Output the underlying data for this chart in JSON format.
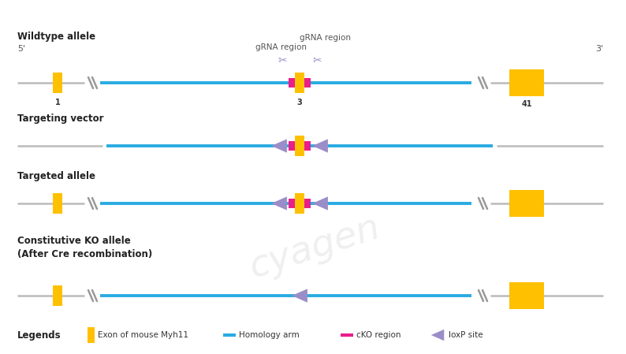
{
  "bg_color": "#ffffff",
  "fig_width": 7.94,
  "fig_height": 4.49,
  "dpi": 100,
  "wildtype_label": "Wildtype allele",
  "targeting_label": "Targeting vector",
  "targeted_label": "Targeted allele",
  "ko_label": "Constitutive KO allele\n(After Cre recombination)",
  "legends_label": "Legends",
  "grna_label1": "gRNA region",
  "grna_label2": "gRNA region",
  "label_5prime": "5'",
  "label_3prime": "3'",
  "exon_color": "#FFC000",
  "homology_color": "#29ABE2",
  "cko_color": "#E91E8C",
  "loxp_color": "#9B8DC8",
  "line_color": "#BBBBBB",
  "legend_exon_label": "Exon of mouse Myh11",
  "legend_homology_label": "Homology arm",
  "legend_cko_label": "cKO region",
  "legend_loxp_label": "loxP site",
  "watermark_text": "cyagen",
  "watermark_color": "#CCCCCC"
}
